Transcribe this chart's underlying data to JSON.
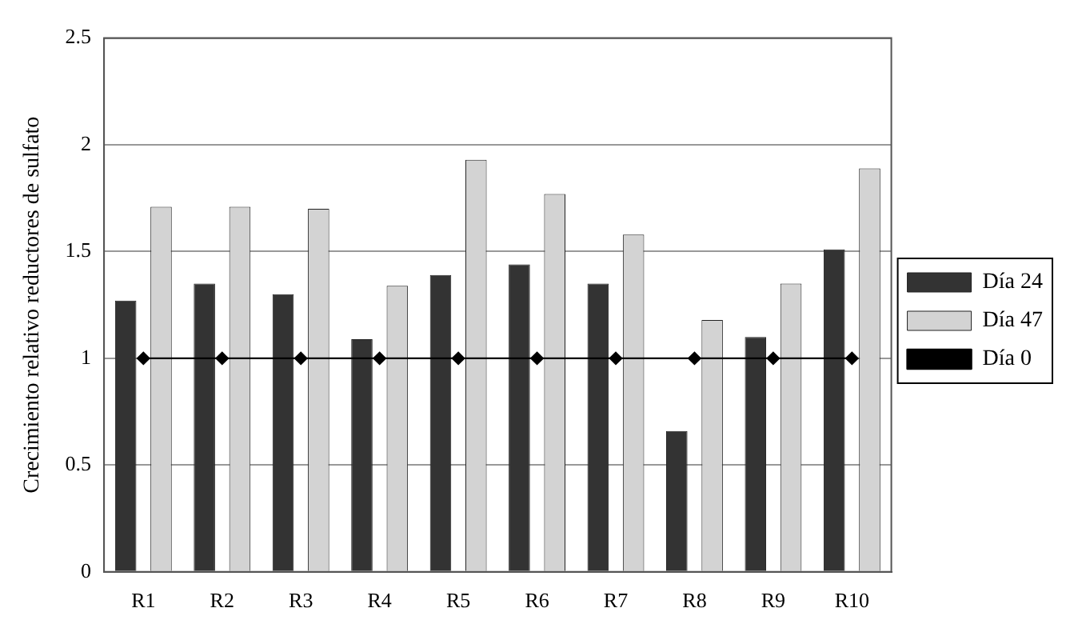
{
  "chart_data": {
    "type": "bar",
    "ylabel": "Crecimiento relativo reductores de sulfato",
    "categories": [
      "R1",
      "R2",
      "R3",
      "R4",
      "R5",
      "R6",
      "R7",
      "R8",
      "R9",
      "R10"
    ],
    "series": [
      {
        "name": "Día 24",
        "color": "#333333",
        "values": [
          1.27,
          1.35,
          1.3,
          1.09,
          1.39,
          1.44,
          1.35,
          0.66,
          1.1,
          1.51
        ]
      },
      {
        "name": "Día 47",
        "color": "#d3d3d3",
        "values": [
          1.71,
          1.71,
          1.7,
          1.34,
          1.93,
          1.77,
          1.58,
          1.18,
          1.35,
          1.89
        ]
      },
      {
        "name": "Día 0",
        "type": "line",
        "color": "#000000",
        "marker": "diamond",
        "values": [
          1,
          1,
          1,
          1,
          1,
          1,
          1,
          1,
          1,
          1
        ]
      }
    ],
    "ylim": [
      0,
      2.5
    ],
    "yticks": [
      0,
      0.5,
      1,
      1.5,
      2,
      2.5
    ],
    "grid": "y",
    "legend": "right"
  }
}
